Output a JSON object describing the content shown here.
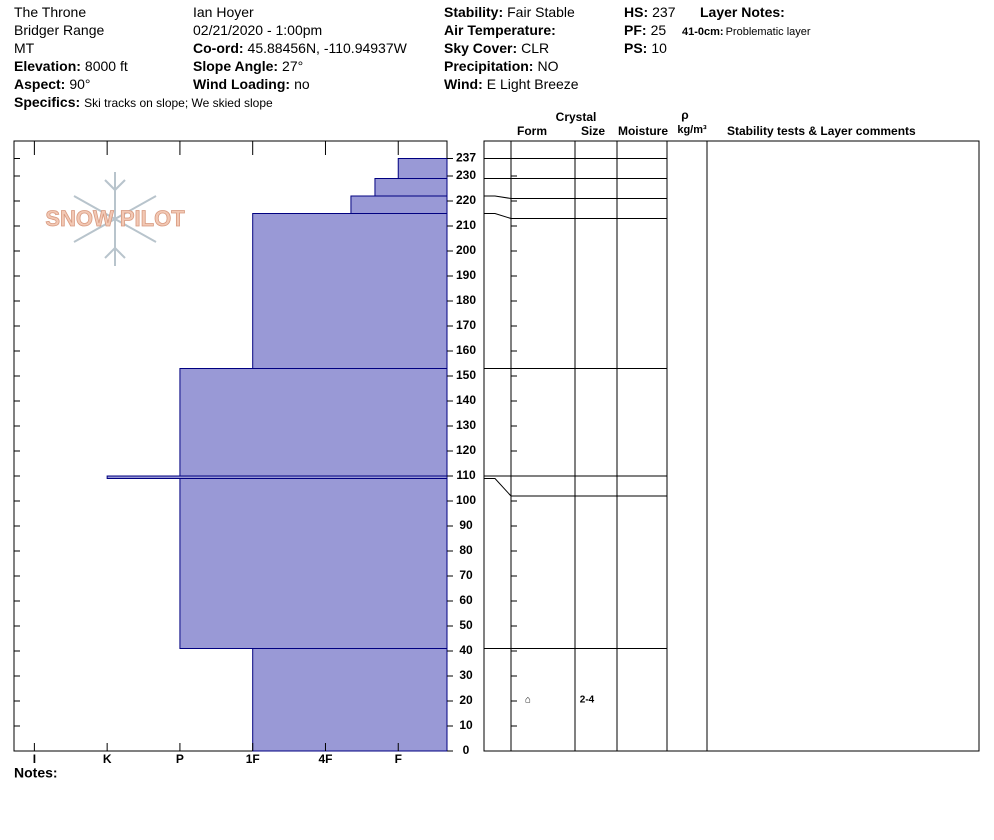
{
  "header": {
    "columns": [
      [
        {
          "value": "The Throne"
        },
        {
          "value": "Bridger Range"
        },
        {
          "value": "MT"
        },
        {
          "label": "Elevation:",
          "value": "8000 ft"
        },
        {
          "label": "Aspect:",
          "value": "90°"
        }
      ],
      [
        {
          "value": "Ian Hoyer"
        },
        {
          "value": "02/21/2020 - 1:00pm"
        },
        {
          "label": "Co-ord:",
          "value": "45.88456N, -110.94937W"
        },
        {
          "label": "Slope Angle:",
          "value": "27°"
        },
        {
          "label": "Wind Loading:",
          "value": "no"
        }
      ],
      [
        {
          "label": "Stability:",
          "value": "Fair Stable"
        },
        {
          "label": "Air Temperature:"
        },
        {
          "label": "Sky Cover:",
          "value": "CLR"
        },
        {
          "label": "Precipitation:",
          "value": "NO"
        },
        {
          "label": "Wind:",
          "value": "E Light Breeze"
        }
      ],
      [
        {
          "label": "HS:",
          "value": "237"
        },
        {
          "label": "PF:",
          "value": "25"
        },
        {
          "label": "PS:",
          "value": "10"
        }
      ],
      [
        {
          "label": "Layer Notes:"
        }
      ]
    ],
    "layer_note": {
      "label": "41-0cm:",
      "value": "Problematic layer"
    },
    "specifics": {
      "label": "Specifics:",
      "value": "Ski tracks on slope; We skied slope"
    }
  },
  "logo": "SNOW PILOT",
  "notes_label": "Notes:",
  "table_headers": {
    "crystal": "Crystal",
    "form": "Form",
    "size": "Size",
    "moisture": "Moisture",
    "rho": "ρ",
    "density_unit": "kg/m³",
    "comments": "Stability tests & Layer comments"
  },
  "chart_data": {
    "type": "snow-profile",
    "ylim": [
      0,
      244
    ],
    "yticks": [
      0,
      10,
      20,
      30,
      40,
      50,
      60,
      70,
      80,
      90,
      100,
      110,
      120,
      130,
      140,
      150,
      160,
      170,
      180,
      190,
      200,
      210,
      220,
      230,
      237
    ],
    "xlim": [
      6.28,
      0.33
    ],
    "xticks": [
      {
        "value": 6,
        "label": "I"
      },
      {
        "value": 5,
        "label": "K"
      },
      {
        "value": 4,
        "label": "P"
      },
      {
        "value": 3,
        "label": "1F"
      },
      {
        "value": 2,
        "label": "4F"
      },
      {
        "value": 1,
        "label": "F"
      }
    ],
    "color": "#9999d6",
    "layers": [
      {
        "bottom": 0,
        "top": 41,
        "hardness": 3,
        "grain_form": "⌂",
        "grain_size": "2-4"
      },
      {
        "bottom": 41,
        "top": 109,
        "hardness": 4
      },
      {
        "bottom": 109,
        "top": 110,
        "hardness": 5
      },
      {
        "bottom": 110,
        "top": 153,
        "hardness": 4
      },
      {
        "bottom": 153,
        "top": 215,
        "hardness": 3
      },
      {
        "bottom": 215,
        "top": 222,
        "hardness": 1.65
      },
      {
        "bottom": 222,
        "top": 229,
        "hardness": 1.32
      },
      {
        "bottom": 229,
        "top": 237,
        "hardness": 1
      }
    ]
  }
}
